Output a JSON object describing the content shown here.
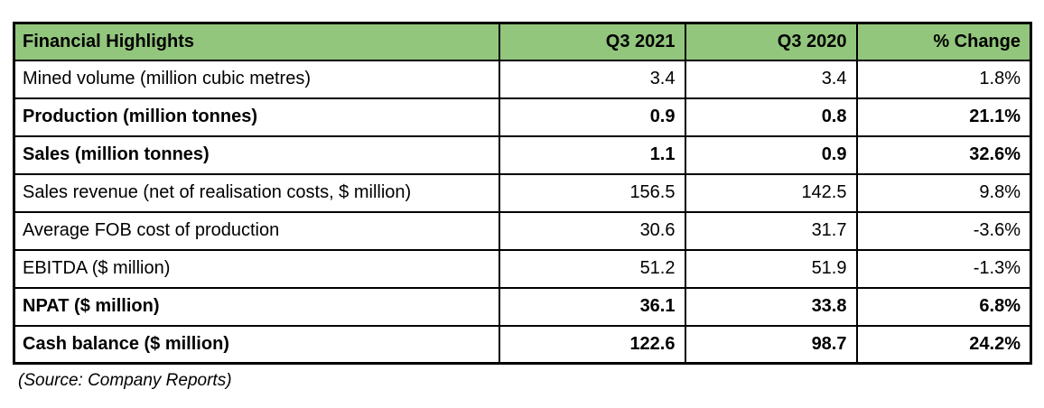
{
  "chart_data": {
    "type": "table",
    "title": "Financial Highlights",
    "columns": [
      "Financial Highlights",
      "Q3 2021",
      "Q3 2020",
      "% Change"
    ],
    "rows": [
      {
        "label": "Mined volume (million cubic metres)",
        "q3_2021": "3.4",
        "q3_2020": "3.4",
        "pct_change": "1.8%",
        "bold": false
      },
      {
        "label": "Production (million tonnes)",
        "q3_2021": "0.9",
        "q3_2020": "0.8",
        "pct_change": "21.1%",
        "bold": true
      },
      {
        "label": "Sales (million tonnes)",
        "q3_2021": "1.1",
        "q3_2020": "0.9",
        "pct_change": "32.6%",
        "bold": true
      },
      {
        "label": "Sales revenue (net of realisation costs, $ million)",
        "q3_2021": "156.5",
        "q3_2020": "142.5",
        "pct_change": "9.8%",
        "bold": false
      },
      {
        "label": "Average FOB cost of production",
        "q3_2021": "30.6",
        "q3_2020": "31.7",
        "pct_change": "-3.6%",
        "bold": false
      },
      {
        "label": "EBITDA ($ million)",
        "q3_2021": "51.2",
        "q3_2020": "51.9",
        "pct_change": "-1.3%",
        "bold": false
      },
      {
        "label": "NPAT ($ million)",
        "q3_2021": "36.1",
        "q3_2020": "33.8",
        "pct_change": "6.8%",
        "bold": true
      },
      {
        "label": "Cash balance ($ million)",
        "q3_2021": "122.6",
        "q3_2020": "98.7",
        "pct_change": "24.2%",
        "bold": true
      }
    ],
    "source_note": "(Source: Company Reports)",
    "layout_hints": {
      "grid": "on",
      "numeric_alignment": "right"
    }
  },
  "colors": {
    "header_bg": "#93C67D",
    "border": "#000000",
    "text": "#000000",
    "page_bg": "#FFFFFF"
  }
}
